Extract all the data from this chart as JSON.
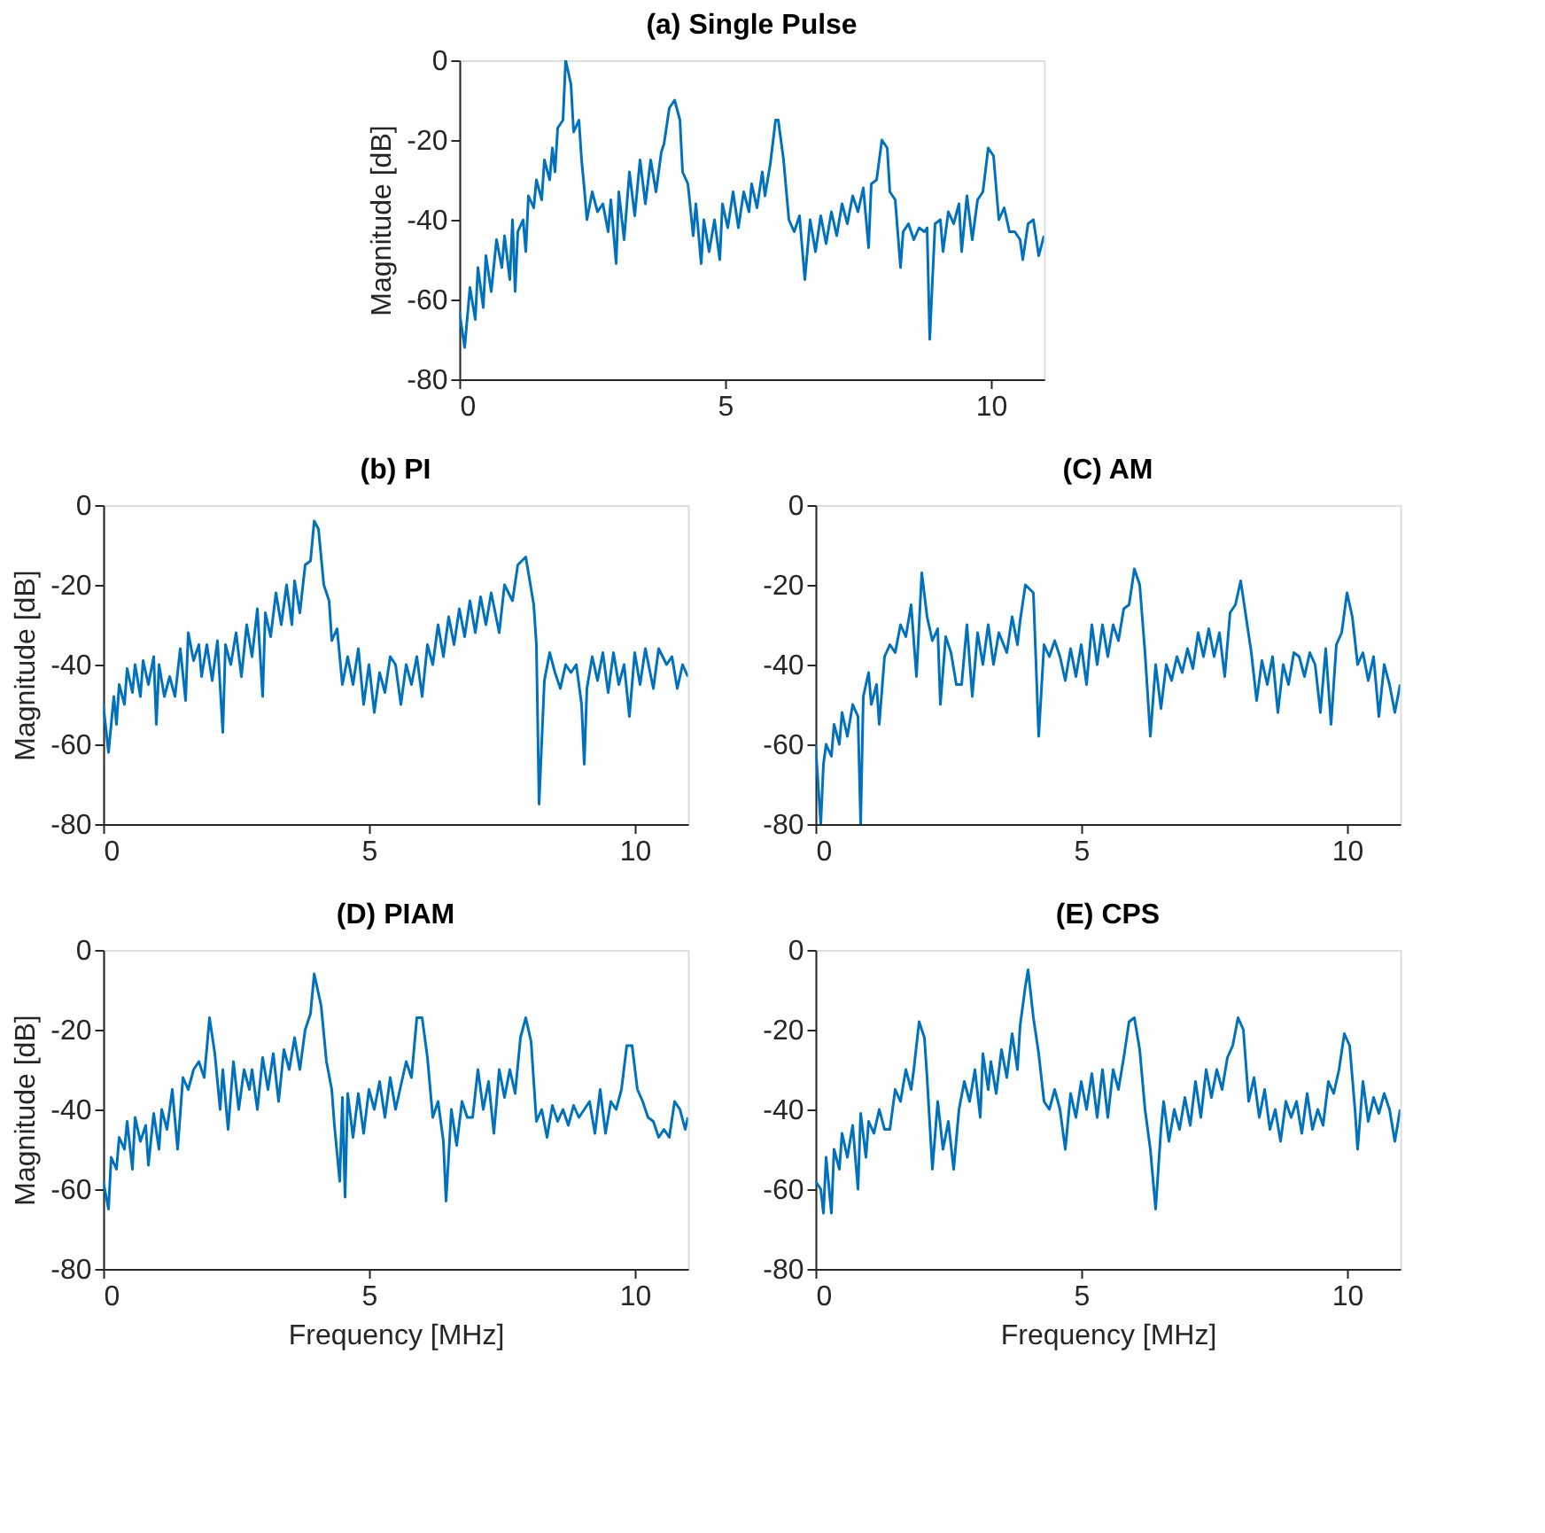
{
  "chart_data": [
    {
      "type": "line",
      "title": "(a) Single Pulse",
      "ylabel": "Magnitude [dB]",
      "xlim": [
        0,
        11
      ],
      "ylim": [
        -80,
        0
      ],
      "xticks": [
        0,
        5,
        10
      ],
      "yticks": [
        -80,
        -60,
        -40,
        -20,
        0
      ],
      "grid": false,
      "line_style": "solid",
      "marker": "none",
      "series": [
        {
          "color": "#0072bd",
          "x": [
            0,
            0.1,
            0.2,
            0.3,
            0.35,
            0.45,
            0.5,
            0.6,
            0.7,
            0.8,
            0.85,
            0.95,
            1.0,
            1.05,
            1.1,
            1.2,
            1.25,
            1.3,
            1.4,
            1.45,
            1.55,
            1.6,
            1.7,
            1.75,
            1.8,
            1.85,
            1.95,
            2.0,
            2.1,
            2.15,
            2.25,
            2.3,
            2.35,
            2.4,
            2.5,
            2.6,
            2.7,
            2.8,
            2.85,
            2.95,
            3.0,
            3.1,
            3.2,
            3.3,
            3.4,
            3.5,
            3.6,
            3.7,
            3.8,
            3.85,
            3.95,
            4.05,
            4.15,
            4.2,
            4.3,
            4.4,
            4.45,
            4.55,
            4.6,
            4.7,
            4.8,
            4.9,
            4.95,
            5.05,
            5.15,
            5.25,
            5.35,
            5.45,
            5.5,
            5.6,
            5.7,
            5.75,
            5.85,
            5.95,
            6.0,
            6.1,
            6.2,
            6.3,
            6.4,
            6.5,
            6.6,
            6.7,
            6.8,
            6.9,
            7.0,
            7.1,
            7.2,
            7.3,
            7.4,
            7.5,
            7.6,
            7.7,
            7.75,
            7.85,
            7.95,
            8.05,
            8.1,
            8.2,
            8.3,
            8.35,
            8.45,
            8.55,
            8.65,
            8.75,
            8.8,
            8.85,
            8.95,
            9.05,
            9.1,
            9.2,
            9.3,
            9.4,
            9.45,
            9.55,
            9.65,
            9.75,
            9.85,
            9.95,
            10.05,
            10.15,
            10.25,
            10.35,
            10.45,
            10.55,
            10.6,
            10.7,
            10.8,
            10.9,
            11
          ],
          "values": [
            -63,
            -72,
            -57,
            -65,
            -52,
            -62,
            -49,
            -58,
            -45,
            -52,
            -44,
            -55,
            -40,
            -58,
            -43,
            -40,
            -48,
            -34,
            -37,
            -30,
            -35,
            -25,
            -30,
            -22,
            -28,
            -17,
            -15,
            0,
            -6,
            -18,
            -15,
            -25,
            -32,
            -40,
            -33,
            -38,
            -36,
            -43,
            -35,
            -51,
            -33,
            -45,
            -28,
            -39,
            -25,
            -36,
            -25,
            -33,
            -23,
            -21,
            -12,
            -10,
            -15,
            -28,
            -31,
            -44,
            -36,
            -51,
            -40,
            -48,
            -40,
            -50,
            -36,
            -42,
            -33,
            -42,
            -33,
            -38,
            -31,
            -37,
            -28,
            -34,
            -26,
            -15,
            -15,
            -25,
            -40,
            -43,
            -39,
            -55,
            -40,
            -48,
            -39,
            -46,
            -38,
            -44,
            -36,
            -41,
            -34,
            -38,
            -32,
            -47,
            -31,
            -30,
            -20,
            -22,
            -33,
            -35,
            -52,
            -43,
            -41,
            -45,
            -42,
            -43,
            -42,
            -70,
            -41,
            -40,
            -48,
            -38,
            -41,
            -36,
            -48,
            -34,
            -45,
            -35,
            -33,
            -22,
            -24,
            -40,
            -37,
            -43,
            -43,
            -45,
            -50,
            -41,
            -40,
            -49,
            -44
          ]
        }
      ]
    },
    {
      "type": "line",
      "title": "(b) PI",
      "ylabel": "Magnitude [dB]",
      "xlim": [
        0,
        11
      ],
      "ylim": [
        -80,
        0
      ],
      "xticks": [
        0,
        5,
        10
      ],
      "yticks": [
        -80,
        -60,
        -40,
        -20,
        0
      ],
      "grid": false,
      "line_style": "solid",
      "marker": "none",
      "series": [
        {
          "color": "#0072bd",
          "x": [
            0,
            0.1,
            0.2,
            0.25,
            0.3,
            0.4,
            0.45,
            0.55,
            0.6,
            0.7,
            0.75,
            0.85,
            0.95,
            1.0,
            1.05,
            1.15,
            1.25,
            1.35,
            1.45,
            1.55,
            1.6,
            1.7,
            1.8,
            1.85,
            1.95,
            2.05,
            2.15,
            2.25,
            2.3,
            2.4,
            2.5,
            2.6,
            2.7,
            2.8,
            2.9,
            3.0,
            3.05,
            3.15,
            3.25,
            3.35,
            3.45,
            3.55,
            3.6,
            3.7,
            3.8,
            3.9,
            3.97,
            4.05,
            4.15,
            4.25,
            4.3,
            4.4,
            4.5,
            4.6,
            4.7,
            4.8,
            4.9,
            5.0,
            5.1,
            5.2,
            5.3,
            5.4,
            5.5,
            5.6,
            5.7,
            5.8,
            5.9,
            6.0,
            6.1,
            6.2,
            6.3,
            6.4,
            6.5,
            6.6,
            6.7,
            6.8,
            6.9,
            7.0,
            7.1,
            7.2,
            7.3,
            7.45,
            7.55,
            7.7,
            7.8,
            7.95,
            8.1,
            8.15,
            8.2,
            8.3,
            8.4,
            8.5,
            8.6,
            8.7,
            8.8,
            8.9,
            9.0,
            9.05,
            9.1,
            9.2,
            9.3,
            9.4,
            9.5,
            9.6,
            9.7,
            9.8,
            9.9,
            10.0,
            10.1,
            10.2,
            10.35,
            10.45,
            10.6,
            10.7,
            10.8,
            10.9,
            11
          ],
          "values": [
            -50,
            -62,
            -48,
            -55,
            -45,
            -50,
            -41,
            -47,
            -40,
            -48,
            -39,
            -45,
            -38,
            -55,
            -40,
            -48,
            -43,
            -48,
            -36,
            -49,
            -32,
            -39,
            -35,
            -43,
            -35,
            -44,
            -34,
            -57,
            -35,
            -40,
            -32,
            -43,
            -30,
            -38,
            -26,
            -48,
            -27,
            -33,
            -22,
            -30,
            -20,
            -30,
            -19,
            -27,
            -15,
            -14,
            -4,
            -6,
            -20,
            -24,
            -34,
            -31,
            -45,
            -38,
            -45,
            -36,
            -50,
            -40,
            -52,
            -42,
            -47,
            -38,
            -40,
            -50,
            -40,
            -45,
            -38,
            -48,
            -35,
            -40,
            -30,
            -38,
            -28,
            -35,
            -26,
            -33,
            -24,
            -32,
            -23,
            -30,
            -22,
            -32,
            -20,
            -24,
            -15,
            -13,
            -25,
            -35,
            -75,
            -44,
            -37,
            -42,
            -46,
            -40,
            -42,
            -40,
            -50,
            -65,
            -46,
            -38,
            -44,
            -37,
            -47,
            -37,
            -45,
            -40,
            -53,
            -37,
            -45,
            -36,
            -46,
            -36,
            -40,
            -38,
            -46,
            -40,
            -43
          ]
        }
      ]
    },
    {
      "type": "line",
      "title": "(C) AM",
      "xlim": [
        0,
        11
      ],
      "ylim": [
        -80,
        0
      ],
      "xticks": [
        0,
        5,
        10
      ],
      "yticks": [
        -80,
        -60,
        -40,
        -20,
        0
      ],
      "grid": false,
      "line_style": "solid",
      "marker": "none",
      "series": [
        {
          "color": "#0072bd",
          "x": [
            0,
            0.05,
            0.1,
            0.15,
            0.2,
            0.3,
            0.35,
            0.45,
            0.5,
            0.6,
            0.7,
            0.8,
            0.85,
            0.9,
            1.0,
            1.05,
            1.15,
            1.2,
            1.3,
            1.4,
            1.5,
            1.6,
            1.7,
            1.8,
            1.9,
            2.0,
            2.1,
            2.2,
            2.3,
            2.35,
            2.45,
            2.55,
            2.65,
            2.75,
            2.85,
            2.95,
            3.05,
            3.15,
            3.25,
            3.35,
            3.45,
            3.6,
            3.7,
            3.8,
            3.85,
            3.95,
            4.1,
            4.2,
            4.3,
            4.4,
            4.5,
            4.6,
            4.7,
            4.8,
            4.9,
            5.0,
            5.1,
            5.2,
            5.3,
            5.4,
            5.5,
            5.6,
            5.7,
            5.8,
            5.9,
            6.0,
            6.1,
            6.2,
            6.3,
            6.4,
            6.5,
            6.6,
            6.7,
            6.8,
            6.9,
            7.0,
            7.1,
            7.2,
            7.3,
            7.4,
            7.5,
            7.6,
            7.7,
            7.8,
            7.9,
            8.0,
            8.1,
            8.2,
            8.3,
            8.4,
            8.5,
            8.6,
            8.7,
            8.8,
            8.9,
            9.0,
            9.1,
            9.2,
            9.3,
            9.4,
            9.5,
            9.6,
            9.7,
            9.8,
            9.9,
            10.0,
            10.1,
            10.2,
            10.3,
            10.4,
            10.5,
            10.6,
            10.7,
            10.8,
            10.9,
            11
          ],
          "values": [
            -60,
            -70,
            -80,
            -65,
            -60,
            -63,
            -55,
            -60,
            -52,
            -58,
            -50,
            -53,
            -80,
            -48,
            -42,
            -50,
            -45,
            -55,
            -38,
            -35,
            -37,
            -30,
            -33,
            -25,
            -43,
            -17,
            -28,
            -34,
            -31,
            -50,
            -33,
            -37,
            -45,
            -45,
            -30,
            -48,
            -32,
            -40,
            -30,
            -40,
            -32,
            -37,
            -28,
            -35,
            -29,
            -20,
            -22,
            -58,
            -35,
            -38,
            -34,
            -38,
            -44,
            -36,
            -43,
            -35,
            -45,
            -30,
            -40,
            -30,
            -38,
            -30,
            -34,
            -26,
            -25,
            -16,
            -20,
            -37,
            -58,
            -40,
            -51,
            -40,
            -44,
            -38,
            -42,
            -36,
            -41,
            -32,
            -38,
            -31,
            -38,
            -32,
            -43,
            -27,
            -25,
            -19,
            -28,
            -37,
            -49,
            -39,
            -45,
            -38,
            -52,
            -40,
            -45,
            -37,
            -38,
            -43,
            -37,
            -40,
            -52,
            -36,
            -55,
            -35,
            -32,
            -22,
            -28,
            -40,
            -37,
            -44,
            -38,
            -53,
            -40,
            -45,
            -52,
            -45
          ]
        }
      ]
    },
    {
      "type": "line",
      "title": "(D) PIAM",
      "xlabel": "Frequency [MHz]",
      "ylabel": "Magnitude [dB]",
      "xlim": [
        0,
        11
      ],
      "ylim": [
        -80,
        0
      ],
      "xticks": [
        0,
        5,
        10
      ],
      "yticks": [
        -80,
        -60,
        -40,
        -20,
        0
      ],
      "grid": false,
      "line_style": "solid",
      "marker": "none",
      "series": [
        {
          "color": "#0072bd",
          "x": [
            0,
            0.1,
            0.15,
            0.25,
            0.3,
            0.4,
            0.45,
            0.55,
            0.6,
            0.7,
            0.8,
            0.85,
            0.95,
            1.05,
            1.1,
            1.2,
            1.3,
            1.4,
            1.5,
            1.6,
            1.7,
            1.8,
            1.9,
            2.0,
            2.1,
            2.2,
            2.25,
            2.35,
            2.45,
            2.55,
            2.65,
            2.75,
            2.8,
            2.9,
            3.0,
            3.1,
            3.2,
            3.3,
            3.4,
            3.5,
            3.6,
            3.7,
            3.8,
            3.9,
            3.97,
            4.1,
            4.2,
            4.3,
            4.35,
            4.45,
            4.5,
            4.55,
            4.6,
            4.7,
            4.8,
            4.9,
            5.0,
            5.1,
            5.2,
            5.3,
            5.4,
            5.5,
            5.6,
            5.7,
            5.8,
            5.9,
            6.0,
            6.1,
            6.2,
            6.3,
            6.4,
            6.45,
            6.55,
            6.65,
            6.75,
            6.85,
            6.95,
            7.05,
            7.15,
            7.25,
            7.35,
            7.45,
            7.55,
            7.65,
            7.75,
            7.85,
            7.95,
            8.05,
            8.15,
            8.25,
            8.35,
            8.45,
            8.55,
            8.65,
            8.75,
            8.85,
            8.95,
            9.05,
            9.15,
            9.25,
            9.35,
            9.45,
            9.55,
            9.65,
            9.75,
            9.85,
            9.95,
            10.05,
            10.15,
            10.25,
            10.35,
            10.45,
            10.55,
            10.65,
            10.75,
            10.85,
            10.95,
            11
          ],
          "values": [
            -58,
            -65,
            -52,
            -55,
            -47,
            -50,
            -43,
            -55,
            -42,
            -48,
            -44,
            -54,
            -41,
            -50,
            -40,
            -45,
            -35,
            -50,
            -32,
            -35,
            -30,
            -28,
            -32,
            -17,
            -26,
            -40,
            -30,
            -45,
            -28,
            -40,
            -30,
            -35,
            -30,
            -40,
            -27,
            -35,
            -26,
            -38,
            -25,
            -30,
            -22,
            -30,
            -20,
            -16,
            -6,
            -14,
            -28,
            -35,
            -44,
            -58,
            -37,
            -62,
            -36,
            -47,
            -36,
            -46,
            -35,
            -40,
            -33,
            -42,
            -32,
            -40,
            -34,
            -28,
            -32,
            -17,
            -17,
            -27,
            -42,
            -38,
            -48,
            -63,
            -40,
            -49,
            -38,
            -42,
            -42,
            -30,
            -40,
            -33,
            -46,
            -30,
            -37,
            -30,
            -36,
            -22,
            -17,
            -23,
            -43,
            -40,
            -47,
            -39,
            -43,
            -40,
            -44,
            -39,
            -42,
            -40,
            -38,
            -46,
            -35,
            -46,
            -38,
            -40,
            -35,
            -24,
            -24,
            -35,
            -38,
            -42,
            -43,
            -47,
            -45,
            -47,
            -38,
            -40,
            -45,
            -42
          ]
        }
      ]
    },
    {
      "type": "line",
      "title": "(E) CPS",
      "xlabel": "Frequency [MHz]",
      "xlim": [
        0,
        11
      ],
      "ylim": [
        -80,
        0
      ],
      "xticks": [
        0,
        5,
        10
      ],
      "yticks": [
        -80,
        -60,
        -40,
        -20,
        0
      ],
      "grid": false,
      "line_style": "solid",
      "marker": "none",
      "series": [
        {
          "color": "#0072bd",
          "x": [
            0,
            0.1,
            0.15,
            0.2,
            0.3,
            0.35,
            0.45,
            0.5,
            0.6,
            0.7,
            0.8,
            0.85,
            0.95,
            1.0,
            1.1,
            1.2,
            1.3,
            1.4,
            1.5,
            1.6,
            1.7,
            1.8,
            1.85,
            1.95,
            2.05,
            2.1,
            2.2,
            2.3,
            2.4,
            2.5,
            2.6,
            2.7,
            2.8,
            2.9,
            3.0,
            3.1,
            3.15,
            3.25,
            3.3,
            3.4,
            3.5,
            3.6,
            3.7,
            3.8,
            3.85,
            3.95,
            4.0,
            4.1,
            4.2,
            4.3,
            4.4,
            4.5,
            4.6,
            4.7,
            4.8,
            4.9,
            5.0,
            5.1,
            5.2,
            5.3,
            5.4,
            5.5,
            5.6,
            5.7,
            5.8,
            5.9,
            6.0,
            6.1,
            6.2,
            6.3,
            6.4,
            6.5,
            6.55,
            6.65,
            6.75,
            6.85,
            6.95,
            7.05,
            7.15,
            7.25,
            7.35,
            7.45,
            7.55,
            7.65,
            7.75,
            7.85,
            7.95,
            8.05,
            8.15,
            8.25,
            8.35,
            8.45,
            8.55,
            8.65,
            8.75,
            8.85,
            8.95,
            9.05,
            9.15,
            9.25,
            9.35,
            9.45,
            9.55,
            9.65,
            9.75,
            9.85,
            9.95,
            10.05,
            10.15,
            10.2,
            10.3,
            10.4,
            10.5,
            10.6,
            10.7,
            10.8,
            10.9,
            11
          ],
          "values": [
            -58,
            -60,
            -66,
            -52,
            -66,
            -50,
            -55,
            -46,
            -52,
            -44,
            -60,
            -41,
            -52,
            -43,
            -46,
            -40,
            -45,
            -45,
            -35,
            -38,
            -30,
            -35,
            -30,
            -18,
            -22,
            -32,
            -55,
            -38,
            -50,
            -43,
            -55,
            -40,
            -33,
            -38,
            -30,
            -42,
            -26,
            -35,
            -28,
            -36,
            -25,
            -32,
            -21,
            -30,
            -19,
            -9,
            -5,
            -17,
            -26,
            -38,
            -40,
            -35,
            -40,
            -50,
            -36,
            -42,
            -33,
            -40,
            -31,
            -42,
            -30,
            -42,
            -30,
            -35,
            -27,
            -18,
            -17,
            -25,
            -40,
            -50,
            -65,
            -45,
            -38,
            -48,
            -40,
            -45,
            -37,
            -44,
            -33,
            -42,
            -30,
            -37,
            -30,
            -35,
            -27,
            -24,
            -17,
            -20,
            -38,
            -32,
            -42,
            -35,
            -45,
            -40,
            -48,
            -38,
            -42,
            -38,
            -46,
            -36,
            -45,
            -40,
            -44,
            -33,
            -36,
            -30,
            -21,
            -24,
            -40,
            -50,
            -33,
            -43,
            -37,
            -41,
            -36,
            -40,
            -48,
            -40
          ]
        }
      ]
    }
  ]
}
